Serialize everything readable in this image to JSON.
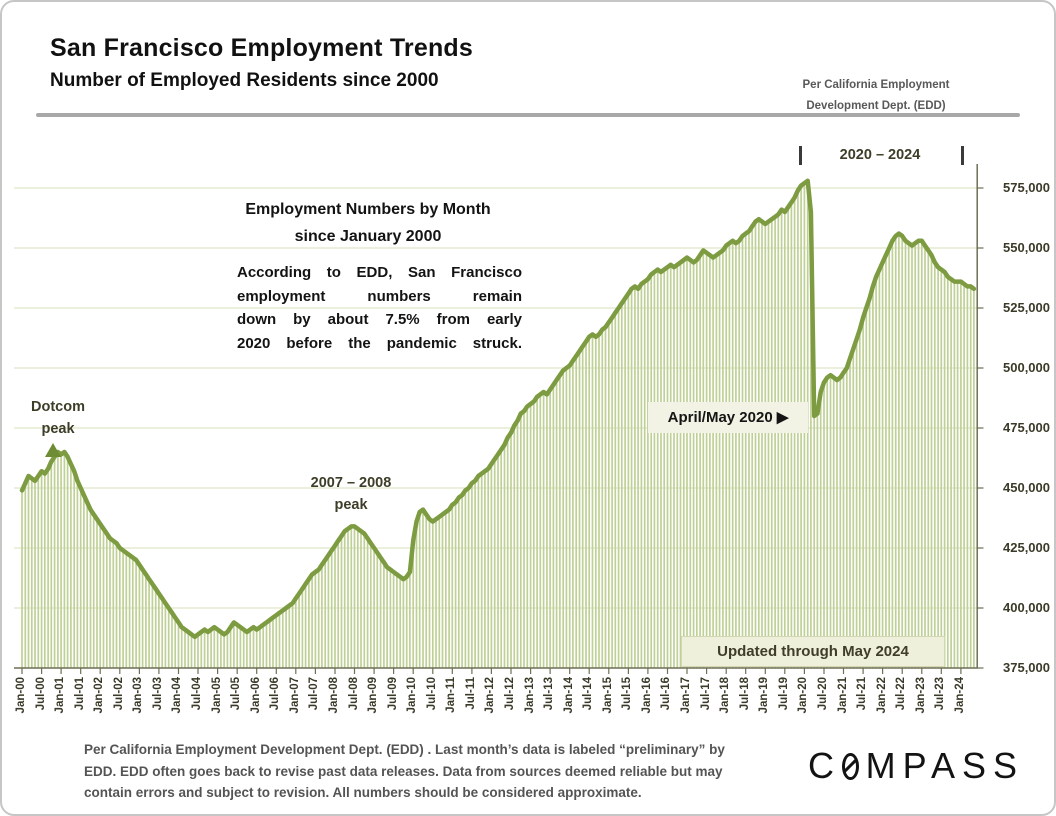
{
  "header": {
    "title": "San Francisco Employment Trends",
    "subtitle": "Number of Employed Residents since 2000",
    "source_note_line1": "Per California Employment",
    "source_note_line2": "Development Dept. (EDD)"
  },
  "annotations": {
    "heading_line1": "Employment Numbers by Month",
    "heading_line2": "since January 2000",
    "paragraph_lines": [
      "According to EDD, San Francisco",
      "employment numbers remain",
      "down by about 7.5% from early",
      "2020 before the pandemic struck."
    ],
    "dotcom_line1": "Dotcom",
    "dotcom_line2": "peak",
    "peak0708_line1": "2007 – 2008",
    "peak0708_line2": "peak",
    "april_may_label": "April/May 2020 ▶",
    "range_label": "2020 – 2024",
    "updated_label": "Updated through May 2024"
  },
  "footer": {
    "disclaimer_lines": [
      "Per California Employment Development Dept. (EDD) . Last month’s data is labeled “preliminary” by",
      "EDD. EDD often goes back to revise past data releases. Data from sources deemed reliable but may",
      "contain errors and subject to revision. All numbers should be considered approximate."
    ],
    "logo_prefix": "C",
    "logo_suffix": "MPASS",
    "logo_full": "COMPASS"
  },
  "colors": {
    "line": "#7d9b41",
    "bars": "#bfd096",
    "grid": "#dde6c8",
    "axis": "#6f6f55",
    "tick_text": "#3b3a28",
    "annotation_olive": "#3e3d28",
    "callout_bg": "#f2f3e5",
    "updated_bg": "#eef0db",
    "divider": "#a8a8a8"
  },
  "chart_data": {
    "type": "bar-line",
    "title": "Employment Numbers by Month since January 2000",
    "ylabel": "Employed residents",
    "x_start": "Jan-2000",
    "x_end": "May-2024",
    "months_per_point": 1,
    "ylim": [
      375000,
      591000
    ],
    "grid": true,
    "y_ticks": [
      375000,
      400000,
      425000,
      450000,
      475000,
      500000,
      525000,
      550000,
      575000
    ],
    "y_tick_labels": [
      "375,000",
      "400,000",
      "425,000",
      "450,000",
      "475,000",
      "500,000",
      "525,000",
      "550,000",
      "575,000"
    ],
    "x_tick_labels": [
      "Jan-00",
      "Jul-00",
      "Jan-01",
      "Jul-01",
      "Jan-02",
      "Jul-02",
      "Jan-03",
      "Jul-03",
      "Jan-04",
      "Jul-04",
      "Jan-05",
      "Jul-05",
      "Jan-06",
      "Jul-06",
      "Jan-07",
      "Jul-07",
      "Jan-08",
      "Jul-08",
      "Jan-09",
      "Jul-09",
      "Jan-10",
      "Jul-10",
      "Jan-11",
      "Jul-11",
      "Jan-12",
      "Jul-12",
      "Jan-13",
      "Jul-13",
      "Jan-14",
      "Jul-14",
      "Jan-15",
      "Jul-15",
      "Jan-16",
      "Jul-16",
      "Jan-17",
      "Jul-17",
      "Jan-18",
      "Jul-18",
      "Jan-19",
      "Jul-19",
      "Jan-20",
      "Jul-20",
      "Jan-21",
      "Jul-21",
      "Jan-22",
      "Jul-22",
      "Jan-23",
      "Jul-23",
      "Jan-24"
    ],
    "values": [
      449000,
      452000,
      455000,
      454000,
      453000,
      455000,
      457000,
      456000,
      458000,
      461000,
      463000,
      465000,
      464000,
      465000,
      463000,
      460000,
      457000,
      453000,
      450000,
      447000,
      444000,
      441000,
      439000,
      437000,
      435000,
      433000,
      431000,
      429000,
      428000,
      427000,
      425000,
      424000,
      423000,
      422000,
      421000,
      420000,
      418000,
      416000,
      414000,
      412000,
      410000,
      408000,
      406000,
      404000,
      402000,
      400000,
      398000,
      396000,
      394000,
      392000,
      391000,
      390000,
      389000,
      388000,
      389000,
      390000,
      391000,
      390000,
      391000,
      392000,
      391000,
      390000,
      389000,
      390000,
      392000,
      394000,
      393000,
      392000,
      391000,
      390000,
      391000,
      392000,
      391000,
      392000,
      393000,
      394000,
      395000,
      396000,
      397000,
      398000,
      399000,
      400000,
      401000,
      402000,
      404000,
      406000,
      408000,
      410000,
      412000,
      414000,
      415000,
      416000,
      418000,
      420000,
      422000,
      424000,
      426000,
      428000,
      430000,
      432000,
      433000,
      434000,
      434000,
      433000,
      432000,
      431000,
      429000,
      427000,
      425000,
      423000,
      421000,
      419000,
      417000,
      416000,
      415000,
      414000,
      413000,
      412000,
      413000,
      415000,
      428000,
      436000,
      440000,
      441000,
      439000,
      437000,
      436000,
      437000,
      438000,
      439000,
      440000,
      441000,
      443000,
      444000,
      446000,
      447000,
      449000,
      450000,
      452000,
      453000,
      455000,
      456000,
      457000,
      458000,
      460000,
      462000,
      464000,
      466000,
      468000,
      471000,
      473000,
      476000,
      478000,
      481000,
      482000,
      484000,
      485000,
      486000,
      488000,
      489000,
      490000,
      489000,
      491000,
      493000,
      495000,
      497000,
      499000,
      500000,
      501000,
      503000,
      505000,
      507000,
      509000,
      511000,
      513000,
      514000,
      513000,
      514000,
      516000,
      517000,
      519000,
      521000,
      523000,
      525000,
      527000,
      529000,
      531000,
      533000,
      534000,
      533000,
      535000,
      536000,
      537000,
      539000,
      540000,
      541000,
      540000,
      541000,
      542000,
      543000,
      542000,
      543000,
      544000,
      545000,
      546000,
      545000,
      544000,
      545000,
      547000,
      549000,
      548000,
      547000,
      546000,
      547000,
      548000,
      549000,
      551000,
      552000,
      553000,
      552000,
      553000,
      555000,
      556000,
      557000,
      559000,
      561000,
      562000,
      561000,
      560000,
      561000,
      562000,
      563000,
      564000,
      566000,
      565000,
      567000,
      569000,
      571000,
      574000,
      576000,
      577000,
      578000,
      565000,
      480000,
      481000,
      490000,
      494000,
      496000,
      497000,
      496000,
      495000,
      496000,
      498000,
      500000,
      504000,
      508000,
      512000,
      516000,
      521000,
      525000,
      529000,
      534000,
      538000,
      541000,
      544000,
      547000,
      550000,
      553000,
      555000,
      556000,
      555000,
      553000,
      552000,
      551000,
      552000,
      553000,
      553000,
      551000,
      549000,
      547000,
      544000,
      542000,
      541000,
      540000,
      538000,
      537000,
      536000,
      536000,
      536000,
      535000,
      534000,
      534000,
      533000
    ]
  }
}
